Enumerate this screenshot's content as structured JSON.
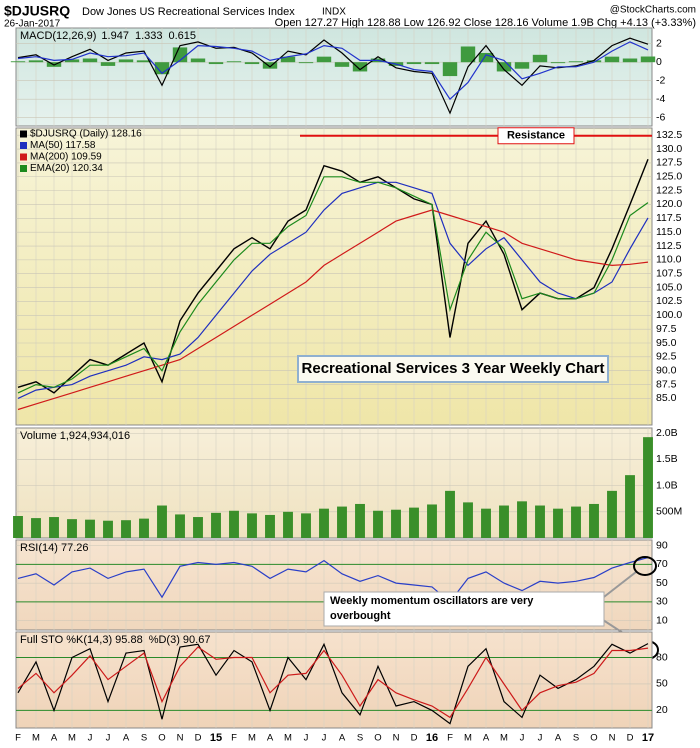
{
  "chart_data": {
    "type": "stock",
    "title": "$DJUSRQ",
    "subtitle": "Dow Jones US Recreational Services Index",
    "exchange": "INDX",
    "source": "@StockCharts.com",
    "date": "26-Jan-2017",
    "quote": "Open 127.27   High 128.88   Low 126.92   Close 128.16   Volume 1.9B   Chg +4.13 (+3.33%)",
    "categories": [
      "F",
      "M",
      "A",
      "M",
      "J",
      "J",
      "A",
      "S",
      "O",
      "N",
      "D",
      "15",
      "F",
      "M",
      "A",
      "M",
      "J",
      "J",
      "A",
      "S",
      "O",
      "N",
      "D",
      "16",
      "F",
      "M",
      "A",
      "M",
      "J",
      "J",
      "A",
      "S",
      "O",
      "N",
      "D",
      "17"
    ],
    "grid": true,
    "panels": [
      {
        "label": "MACD(12,26,9)",
        "ylim": [
          -6.9,
          3.7
        ],
        "yticks": [
          -6,
          -4,
          -2,
          0,
          2
        ],
        "series": [
          {
            "name": "0.615",
            "type": "bar",
            "color": "#3f9a3f",
            "values": [
              0.1,
              0.2,
              -0.5,
              0.3,
              0.4,
              -0.4,
              0.3,
              0.2,
              -1.3,
              1.6,
              0.4,
              -0.2,
              0.1,
              -0.2,
              -0.7,
              0.6,
              -0.1,
              0.6,
              -0.5,
              -1.0,
              0.4,
              -0.4,
              -0.2,
              -0.2,
              -1.5,
              1.7,
              1.0,
              -1.0,
              -0.7,
              0.8,
              -0.1,
              0.1,
              0.2,
              0.6,
              0.4,
              0.615
            ]
          },
          {
            "name": "1.947",
            "type": "line",
            "color": "#000000",
            "values": [
              0.5,
              0.8,
              -0.3,
              0.6,
              1.4,
              0.2,
              1.0,
              1.2,
              -2.5,
              1.8,
              2.2,
              1.5,
              1.6,
              1.0,
              -0.5,
              1.2,
              0.8,
              2.4,
              1.0,
              -0.8,
              0.6,
              -0.6,
              -1.0,
              -1.2,
              -5.5,
              -0.5,
              1.8,
              -0.8,
              -2.5,
              -0.4,
              -0.6,
              -0.4,
              0.2,
              1.8,
              2.6,
              1.947
            ]
          },
          {
            "name": "1.333",
            "type": "line",
            "color": "#2233cc",
            "values": [
              0.4,
              0.6,
              0.2,
              0.3,
              1.0,
              0.6,
              0.7,
              1.0,
              -1.2,
              0.2,
              1.8,
              1.7,
              1.5,
              1.2,
              0.2,
              0.6,
              0.9,
              1.8,
              1.5,
              0.2,
              0.2,
              -0.2,
              -0.8,
              -1.0,
              -4.0,
              -2.2,
              0.8,
              0.2,
              -1.8,
              -1.2,
              -0.5,
              -0.5,
              0,
              1.2,
              2.2,
              1.333
            ]
          }
        ]
      },
      {
        "ylim": [
          80.2,
          133.8
        ],
        "yticks": [
          {
            "value": 85,
            "label": "85.0"
          },
          {
            "value": 87.5,
            "label": "87.5"
          },
          {
            "value": 90,
            "label": "90.0"
          },
          {
            "value": 92.5,
            "label": "92.5"
          },
          {
            "value": 95,
            "label": "95.0"
          },
          {
            "value": 97.5,
            "label": "97.5"
          },
          {
            "value": 100,
            "label": "100.0"
          },
          {
            "value": 102.5,
            "label": "102.5"
          },
          {
            "value": 105,
            "label": "105.0"
          },
          {
            "value": 107.5,
            "label": "107.5"
          },
          {
            "value": 110,
            "label": "110.0"
          },
          {
            "value": 112.5,
            "label": "112.5"
          },
          {
            "value": 115,
            "label": "115.0"
          },
          {
            "value": 117.5,
            "label": "117.5"
          },
          {
            "value": 120,
            "label": "120.0"
          },
          {
            "value": 122.5,
            "label": "122.5"
          },
          {
            "value": 125,
            "label": "125.0"
          },
          {
            "value": 127.5,
            "label": "127.5"
          },
          {
            "value": 130,
            "label": "130.0"
          },
          {
            "value": 132.5,
            "label": "132.5"
          }
        ],
        "resistance": {
          "label": "Resistance",
          "value": 132.4,
          "color": "#e01010"
        },
        "annotation": "Recreational Services 3 Year Weekly Chart",
        "series": [
          {
            "name": "$DJUSRQ (Daily) 128.16",
            "type": "line",
            "color": "#000000",
            "values": [
              87,
              88,
              86,
              89,
              92,
              91,
              93,
              95,
              88,
              99,
              104,
              108,
              112,
              114,
              112,
              117,
              119,
              127,
              126,
              124,
              125,
              123,
              121,
              120,
              96,
              113,
              117,
              111,
              101,
              104,
              103,
              103,
              105,
              112,
              120,
              128.16
            ]
          },
          {
            "name": "MA(50) 117.58",
            "type": "line",
            "color": "#1f2fbf",
            "values": [
              85,
              86.5,
              87,
              87.5,
              89,
              90,
              91,
              92.5,
              92,
              93,
              96,
              100,
              104,
              108,
              111,
              113,
              115,
              119,
              122,
              123,
              124,
              124,
              123,
              122,
              113,
              109,
              112,
              114,
              110,
              106,
              104,
              103,
              104,
              106,
              112,
              117.58
            ]
          },
          {
            "name": "MA(200) 109.59",
            "type": "line",
            "color": "#d01a1a",
            "values": [
              83,
              84,
              85,
              86,
              87,
              88,
              89,
              90,
              91,
              92,
              94,
              96,
              98,
              100,
              102,
              104,
              106,
              109,
              111,
              113,
              115,
              117,
              118,
              119,
              118,
              117,
              116,
              115,
              113,
              112,
              111,
              110,
              109.5,
              109,
              109.2,
              109.59
            ]
          },
          {
            "name": "EMA(20) 120.34",
            "type": "line",
            "color": "#1c8a1c",
            "values": [
              86,
              87.5,
              87,
              88.5,
              91,
              91,
              92.5,
              94,
              90,
              97,
              102,
              106,
              110,
              113,
              113,
              116,
              118,
              125,
              125,
              124,
              124,
              123,
              121.5,
              120,
              101,
              110,
              115,
              112,
              103,
              104,
              103,
              103,
              104,
              110,
              118,
              120.34
            ]
          }
        ]
      },
      {
        "ylim": [
          0,
          2100000000
        ],
        "yticks": [
          {
            "value": 500000000,
            "label": "500M"
          },
          {
            "value": 1000000000,
            "label": "1.0B"
          },
          {
            "value": 1500000000,
            "label": "1.5B"
          },
          {
            "value": 2000000000,
            "label": "2.0B"
          }
        ],
        "series": [
          {
            "name": "Volume 1,924,934,016",
            "type": "bar",
            "color": "#3a8f2a",
            "values": [
              420000000,
              380000000,
              400000000,
              360000000,
              350000000,
              330000000,
              340000000,
              370000000,
              620000000,
              450000000,
              400000000,
              480000000,
              520000000,
              470000000,
              440000000,
              500000000,
              470000000,
              560000000,
              600000000,
              650000000,
              520000000,
              540000000,
              580000000,
              640000000,
              900000000,
              680000000,
              560000000,
              620000000,
              700000000,
              620000000,
              560000000,
              600000000,
              650000000,
              900000000,
              1200000000,
              1924934016
            ]
          }
        ]
      },
      {
        "ylim": [
          0,
          96
        ],
        "yticks": [
          10,
          30,
          50,
          70,
          90
        ],
        "annotation": [
          "Weekly momentum oscillators are very",
          "overbought"
        ],
        "series": [
          {
            "name": "RSI(14) 77.26",
            "type": "line",
            "color": "#2a3fc8",
            "values": [
              55,
              60,
              48,
              62,
              66,
              55,
              62,
              65,
              35,
              68,
              72,
              70,
              72,
              68,
              55,
              65,
              62,
              74,
              60,
              52,
              58,
              50,
              48,
              46,
              30,
              55,
              62,
              50,
              42,
              52,
              50,
              52,
              56,
              66,
              72,
              77.26
            ]
          }
        ]
      },
      {
        "ylim": [
          0,
          109
        ],
        "yticks": [
          20,
          50,
          80
        ],
        "series": [
          {
            "name": "Full STO %K(14,3) 95.88",
            "type": "line",
            "color": "#000000",
            "values": [
              40,
              75,
              20,
              80,
              90,
              30,
              85,
              88,
              10,
              92,
              95,
              60,
              88,
              75,
              20,
              80,
              55,
              95,
              40,
              15,
              70,
              25,
              30,
              20,
              5,
              70,
              90,
              30,
              12,
              60,
              45,
              55,
              70,
              95,
              85,
              95.88
            ]
          },
          {
            "name": "%D(3) 90.67",
            "type": "line",
            "color": "#cc1a1a",
            "values": [
              45,
              62,
              40,
              60,
              82,
              55,
              70,
              85,
              30,
              70,
              92,
              78,
              80,
              80,
              40,
              60,
              62,
              88,
              60,
              25,
              55,
              40,
              32,
              25,
              12,
              45,
              80,
              50,
              20,
              40,
              48,
              52,
              62,
              88,
              88,
              90.67
            ]
          }
        ]
      }
    ]
  }
}
